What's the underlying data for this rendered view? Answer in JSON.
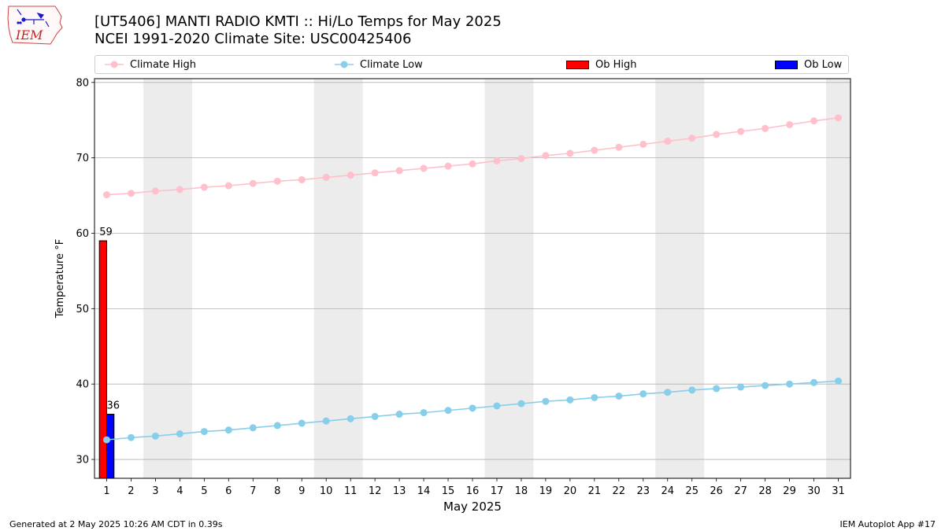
{
  "header": {
    "title_line1": "[UT5406] MANTI RADIO KMTI :: Hi/Lo Temps for May 2025",
    "title_line2": "NCEI 1991-2020 Climate Site: USC00425406"
  },
  "logo": {
    "text": "IEM",
    "icon": "iem-iowa-logo"
  },
  "footer": {
    "left": "Generated at 2 May 2025 10:26 AM CDT in 0.39s",
    "right": "IEM Autoplot App #17"
  },
  "colors": {
    "climate_high": "#ffc0cb",
    "climate_low": "#87ceeb",
    "ob_high": "#ff0000",
    "ob_low": "#0000ff",
    "weekend_shade": "#ececec",
    "grid": "#b0b0b0"
  },
  "chart_data": {
    "type": "bar",
    "xlabel": "May 2025",
    "ylabel": "Temperature °F",
    "xlim": [
      0.5,
      31.5
    ],
    "ylim": [
      27.5,
      80.5
    ],
    "yticks": [
      30,
      40,
      50,
      60,
      70,
      80
    ],
    "grid": "horizontal",
    "legend_placement": "top",
    "weekend_shading": [
      [
        2.5,
        4.5
      ],
      [
        9.5,
        11.5
      ],
      [
        16.5,
        18.5
      ],
      [
        23.5,
        25.5
      ],
      [
        30.5,
        31.5
      ]
    ],
    "x": [
      1,
      2,
      3,
      4,
      5,
      6,
      7,
      8,
      9,
      10,
      11,
      12,
      13,
      14,
      15,
      16,
      17,
      18,
      19,
      20,
      21,
      22,
      23,
      24,
      25,
      26,
      27,
      28,
      29,
      30,
      31
    ],
    "series": [
      {
        "name": "Climate High",
        "kind": "line",
        "values": [
          65.1,
          65.3,
          65.6,
          65.8,
          66.1,
          66.3,
          66.6,
          66.9,
          67.1,
          67.4,
          67.7,
          68.0,
          68.3,
          68.6,
          68.9,
          69.2,
          69.6,
          69.9,
          70.3,
          70.6,
          71.0,
          71.4,
          71.8,
          72.2,
          72.6,
          73.1,
          73.5,
          73.9,
          74.4,
          74.9,
          75.3
        ]
      },
      {
        "name": "Climate Low",
        "kind": "line",
        "values": [
          32.6,
          32.9,
          33.1,
          33.4,
          33.7,
          33.9,
          34.2,
          34.5,
          34.8,
          35.1,
          35.4,
          35.7,
          36.0,
          36.2,
          36.5,
          36.8,
          37.1,
          37.4,
          37.7,
          37.9,
          38.2,
          38.4,
          38.7,
          38.9,
          39.2,
          39.4,
          39.6,
          39.8,
          40.0,
          40.2,
          40.4
        ]
      },
      {
        "name": "Ob High",
        "kind": "bar",
        "x": [
          1
        ],
        "values": [
          59
        ],
        "labels": [
          "59"
        ]
      },
      {
        "name": "Ob Low",
        "kind": "bar",
        "x": [
          1
        ],
        "values": [
          36
        ],
        "labels": [
          "36"
        ]
      }
    ]
  }
}
